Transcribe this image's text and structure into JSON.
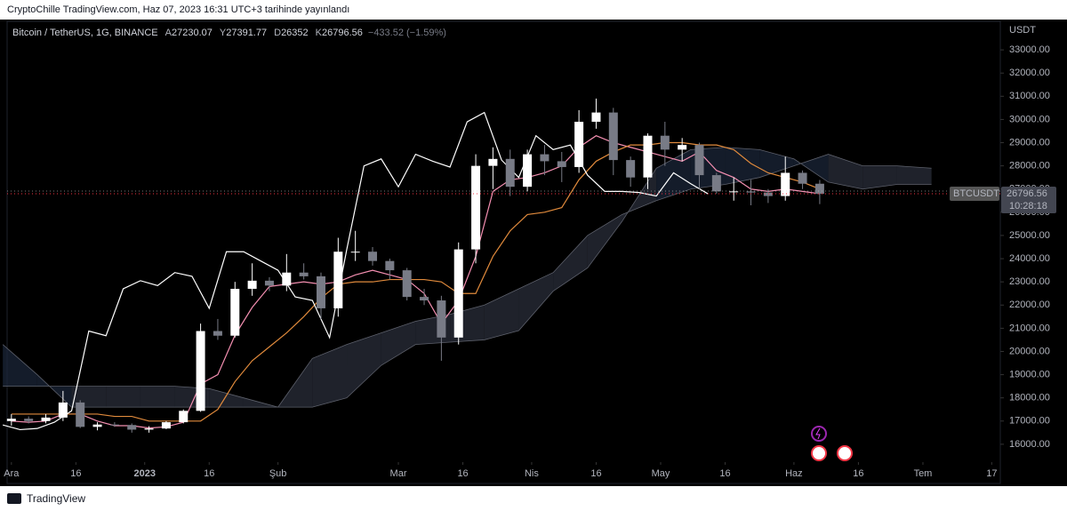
{
  "header": "CryptoChille TradingView.com, Haz 07, 2023 16:31 UTC+3 tarihinde yayınlandı",
  "footer": "TradingView",
  "chart_data": {
    "type": "candlestick",
    "legend": {
      "symbol": "Bitcoin / TetherUS, 1G, BINANCE",
      "open_label": "A",
      "high_label": "Y",
      "low_label": "D",
      "close_label": "K",
      "change": "−433.52 (−1.59%)"
    },
    "y_axis_title": "USDT",
    "price_badge": {
      "symbol": "BTCUSDT",
      "countdown": "10:28:18"
    },
    "up_color": "#ffffff",
    "down_color": "#787b86",
    "x": [
      0,
      4,
      8,
      12,
      16,
      20,
      24,
      28,
      32,
      36,
      40,
      44,
      48,
      52,
      56,
      60,
      64,
      68,
      72,
      76,
      80,
      84,
      88,
      92,
      96,
      100,
      104,
      108,
      112,
      116,
      120,
      124,
      128,
      132,
      136,
      140,
      144,
      148,
      152,
      156,
      160,
      164,
      168,
      172,
      176,
      180,
      184,
      188
    ],
    "open": [
      17000,
      17100,
      17000,
      17150,
      17800,
      16750,
      16850,
      16830,
      16630,
      16680,
      16950,
      17440,
      20880,
      20680,
      22700,
      23050,
      22840,
      23400,
      23240,
      21860,
      24300,
      24300,
      23900,
      23500,
      22350,
      22200,
      20600,
      24400,
      28000,
      28300,
      27100,
      28500,
      28200,
      27950,
      29900,
      30300,
      28250,
      27500,
      29300,
      28700,
      28900,
      27600,
      26900,
      26900,
      26850,
      26700,
      27700,
      27230.07
    ],
    "high": [
      17300,
      17200,
      17300,
      18300,
      17900,
      16950,
      16950,
      16900,
      16780,
      17000,
      17500,
      21200,
      21400,
      23000,
      23800,
      23200,
      24200,
      23800,
      23400,
      24900,
      25200,
      24500,
      24000,
      23600,
      22700,
      22400,
      24700,
      28500,
      28800,
      28700,
      28700,
      28900,
      28600,
      30400,
      30900,
      30500,
      28400,
      29400,
      29900,
      29200,
      29000,
      27700,
      27500,
      27400,
      27000,
      28400,
      27800,
      27391.77
    ],
    "low": [
      16800,
      16900,
      16900,
      17000,
      16700,
      16600,
      16750,
      16500,
      16500,
      16650,
      16900,
      17400,
      20500,
      20600,
      22400,
      22600,
      22600,
      23100,
      21400,
      21500,
      23900,
      23700,
      23100,
      22200,
      22000,
      19600,
      20300,
      23800,
      27000,
      26700,
      26900,
      27600,
      27300,
      27700,
      29600,
      27600,
      27100,
      27000,
      28000,
      28200,
      27000,
      26800,
      26500,
      26300,
      26400,
      26500,
      27000,
      26352
    ],
    "close": [
      17100,
      17000,
      17150,
      17800,
      16750,
      16850,
      16830,
      16630,
      16680,
      16950,
      17440,
      20880,
      20680,
      22700,
      23050,
      22840,
      23400,
      23240,
      21860,
      24300,
      24300,
      23900,
      23500,
      22350,
      22200,
      20600,
      24400,
      28000,
      28300,
      27100,
      28500,
      28200,
      27950,
      29900,
      30300,
      28250,
      27500,
      29300,
      28700,
      28900,
      27600,
      26900,
      26900,
      26850,
      26700,
      27700,
      27230.07,
      26796.56
    ],
    "lines": [
      {
        "color": "#f48fb1",
        "x": [
          0,
          4,
          8,
          12,
          16,
          20,
          24,
          28,
          32,
          36,
          40,
          44,
          48,
          52,
          56,
          60,
          64,
          68,
          72,
          76,
          80,
          84,
          88,
          92,
          96,
          100,
          104,
          108,
          112,
          116,
          120,
          124,
          128,
          132,
          136,
          140,
          144,
          148,
          152,
          156,
          160,
          164,
          168,
          172,
          176,
          180,
          184,
          188
        ],
        "values": [
          17000,
          16950,
          17000,
          17300,
          17300,
          17000,
          16800,
          16800,
          16700,
          16750,
          16950,
          18600,
          19000,
          20700,
          21900,
          22800,
          22900,
          23000,
          22900,
          23000,
          23300,
          23500,
          23300,
          23100,
          22500,
          21200,
          22200,
          24100,
          26900,
          27400,
          27500,
          27700,
          28000,
          28800,
          29300,
          29000,
          28800,
          28600,
          28400,
          28200,
          28600,
          27800,
          27500,
          27000,
          26900,
          27000,
          26900,
          26800
        ]
      },
      {
        "color": "#e08a3c",
        "x": [
          0,
          4,
          8,
          12,
          16,
          20,
          24,
          28,
          32,
          36,
          40,
          44,
          48,
          52,
          56,
          60,
          64,
          68,
          72,
          76,
          80,
          84,
          88,
          92,
          96,
          100,
          104,
          108,
          112,
          116,
          120,
          124,
          128,
          132,
          136,
          140,
          144,
          148,
          152,
          156,
          160,
          164,
          168,
          172,
          176,
          180,
          184,
          188
        ],
        "values": [
          17300,
          17300,
          17300,
          17300,
          17300,
          17300,
          17200,
          17200,
          17000,
          17000,
          17000,
          17000,
          17500,
          18700,
          19600,
          20200,
          20800,
          21500,
          22300,
          22900,
          23000,
          23000,
          23100,
          23100,
          23100,
          23000,
          22500,
          22500,
          24100,
          25200,
          25900,
          26000,
          26200,
          27400,
          28200,
          28600,
          28900,
          28900,
          29000,
          29000,
          28900,
          28900,
          28700,
          28100,
          27700,
          27500,
          27300,
          27000
        ]
      },
      {
        "color": "#ffffff",
        "x": [
          -2,
          2,
          6,
          10,
          14,
          18,
          22,
          26,
          30,
          34,
          38,
          42,
          46,
          50,
          54,
          58,
          62,
          66,
          70,
          74,
          78,
          82,
          86,
          90,
          94,
          98,
          102,
          106,
          110,
          114,
          118,
          122,
          126,
          130,
          134,
          138,
          142,
          146,
          150,
          154,
          158,
          162
        ],
        "values": [
          16830,
          16630,
          16680,
          16950,
          17440,
          20880,
          20680,
          22700,
          23050,
          22840,
          23400,
          23240,
          21860,
          24300,
          24300,
          23900,
          23500,
          22350,
          22200,
          20600,
          24400,
          28000,
          28300,
          27100,
          28500,
          28200,
          27950,
          29900,
          30300,
          28250,
          27500,
          29300,
          28700,
          28900,
          27600,
          26900,
          26900,
          26850,
          26700,
          27700,
          27230.07,
          26796.56
        ]
      }
    ],
    "cloud": {
      "up_color": "#2a2e39",
      "down_color": "#1b2538",
      "x": [
        -2,
        6,
        14,
        22,
        30,
        38,
        46,
        54,
        62,
        70,
        78,
        86,
        94,
        102,
        110,
        118,
        126,
        134,
        142,
        150,
        158,
        166,
        174,
        182,
        190,
        198,
        206,
        214
      ],
      "span_a": [
        18500,
        18500,
        18500,
        18500,
        18500,
        18500,
        18400,
        18000,
        17600,
        19700,
        20300,
        20800,
        21300,
        21600,
        22000,
        22700,
        23400,
        25000,
        25900,
        26500,
        27000,
        27200,
        27500,
        28000,
        28500,
        28000,
        28000,
        27900
      ],
      "span_b": [
        20300,
        19000,
        17600,
        17600,
        17600,
        17600,
        17600,
        17600,
        17600,
        17600,
        18000,
        19400,
        20300,
        20400,
        20500,
        20900,
        22600,
        23600,
        25600,
        27900,
        28700,
        28800,
        28700,
        28300,
        27300,
        27000,
        27200,
        27200
      ]
    },
    "xlim": [
      -1,
      230
    ],
    "xticks": [
      {
        "value": 0,
        "label": "Ara"
      },
      {
        "value": 15,
        "label": "16"
      },
      {
        "value": 31,
        "label": "2023"
      },
      {
        "value": 46,
        "label": "16"
      },
      {
        "value": 62,
        "label": "Şub"
      },
      {
        "value": 90,
        "label": "Mar"
      },
      {
        "value": 105,
        "label": "16"
      },
      {
        "value": 121,
        "label": "Nis"
      },
      {
        "value": 136,
        "label": "16"
      },
      {
        "value": 151,
        "label": "May"
      },
      {
        "value": 166,
        "label": "16"
      },
      {
        "value": 182,
        "label": "Haz"
      },
      {
        "value": 197,
        "label": "16"
      },
      {
        "value": 212,
        "label": "Tem"
      },
      {
        "value": 228,
        "label": "17"
      }
    ],
    "ylim": [
      15230,
      34230
    ],
    "yticks": [
      {
        "value": 16000,
        "label": "16000.00"
      },
      {
        "value": 17000,
        "label": "17000.00"
      },
      {
        "value": 18000,
        "label": "18000.00"
      },
      {
        "value": 19000,
        "label": "19000.00"
      },
      {
        "value": 20000,
        "label": "20000.00"
      },
      {
        "value": 21000,
        "label": "21000.00"
      },
      {
        "value": 22000,
        "label": "22000.00"
      },
      {
        "value": 23000,
        "label": "23000.00"
      },
      {
        "value": 24000,
        "label": "24000.00"
      },
      {
        "value": 25000,
        "label": "25000.00"
      },
      {
        "value": 26000,
        "label": "26000.00"
      },
      {
        "value": 27000,
        "label": "27000.00"
      },
      {
        "value": 28000,
        "label": "28000.00"
      },
      {
        "value": 29000,
        "label": "29000.00"
      },
      {
        "value": 30000,
        "label": "30000.00"
      },
      {
        "value": 31000,
        "label": "31000.00"
      },
      {
        "value": 32000,
        "label": "32000.00"
      },
      {
        "value": 33000,
        "label": "33000.00"
      }
    ],
    "grid": false
  }
}
